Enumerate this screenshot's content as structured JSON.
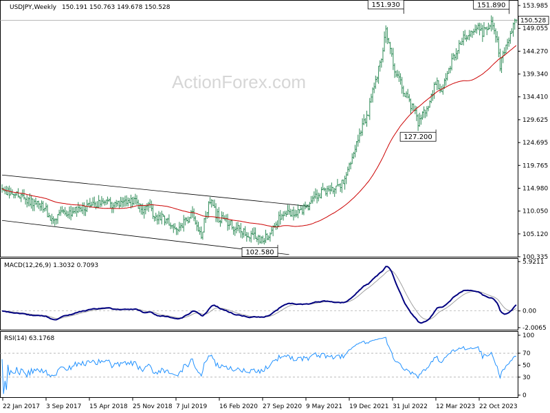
{
  "header": {
    "symbol": "USDJPY,Weekly",
    "ohlc": "150.191 150.763 149.678 150.528",
    "watermark": "ActionForex.com"
  },
  "price_panel": {
    "y_ticks": [
      "153.985",
      "149.055",
      "144.270",
      "139.340",
      "134.410",
      "129.625",
      "124.695",
      "119.765",
      "114.980",
      "110.050",
      "105.120",
      "100.335"
    ],
    "current_price": "150.528",
    "annotations": [
      {
        "label": "151.930",
        "value": 151.93,
        "week": 262
      },
      {
        "label": "151.890",
        "value": 151.89,
        "week": 334
      },
      {
        "label": "127.200",
        "value": 127.2,
        "week": 284
      },
      {
        "label": "102.580",
        "value": 102.58,
        "week": 176
      }
    ]
  },
  "macd_panel": {
    "label": "MACD(12,26,9) 1.3032 0.7093",
    "y_ticks": [
      "5.9211",
      "0.00",
      "-2.0065"
    ]
  },
  "rsi_panel": {
    "label": "RSI(14) 63.1768",
    "y_ticks": [
      "100",
      "70",
      "50",
      "30",
      "0"
    ]
  },
  "x_ticks": [
    "22 Jan 2017",
    "3 Sep 2017",
    "15 Apr 2018",
    "25 Nov 2018",
    "7 Jul 2019",
    "16 Feb 2020",
    "27 Sep 2020",
    "9 May 2021",
    "19 Dec 2021",
    "31 Jul 2022",
    "12 Mar 2023",
    "22 Oct 2023"
  ],
  "colors": {
    "bars": "#2e8b57",
    "ma": "#cc0000",
    "channel": "#000000",
    "macd_line": "#000080",
    "signal_line": "#a0a0a0",
    "rsi": "#1e90ff",
    "grid_level": "#a0a0a0"
  },
  "chart_data": {
    "type": "ohlc",
    "title": "USDJPY,Weekly",
    "ylim": [
      100.335,
      153.985
    ],
    "anchors_close": [
      [
        0,
        114.5
      ],
      [
        10,
        113
      ],
      [
        20,
        112
      ],
      [
        30,
        110
      ],
      [
        33,
        108
      ],
      [
        40,
        109
      ],
      [
        52,
        110
      ],
      [
        60,
        111
      ],
      [
        70,
        112
      ],
      [
        78,
        111
      ],
      [
        90,
        112
      ],
      [
        96,
        110
      ],
      [
        100,
        111
      ],
      [
        105,
        108
      ],
      [
        110,
        108.5
      ],
      [
        120,
        106.5
      ],
      [
        126,
        108
      ],
      [
        130,
        109
      ],
      [
        136,
        104
      ],
      [
        138,
        108
      ],
      [
        142,
        112
      ],
      [
        146,
        109
      ],
      [
        150,
        108
      ],
      [
        156,
        107
      ],
      [
        160,
        106
      ],
      [
        166,
        105
      ],
      [
        172,
        104.5
      ],
      [
        176,
        103.5
      ],
      [
        182,
        104.5
      ],
      [
        190,
        108.5
      ],
      [
        200,
        109.5
      ],
      [
        208,
        110.5
      ],
      [
        214,
        113
      ],
      [
        222,
        114
      ],
      [
        230,
        115
      ],
      [
        236,
        118
      ],
      [
        240,
        123
      ],
      [
        246,
        128
      ],
      [
        250,
        131
      ],
      [
        256,
        139
      ],
      [
        260,
        144
      ],
      [
        262,
        149
      ],
      [
        264,
        145
      ],
      [
        268,
        140
      ],
      [
        272,
        137
      ],
      [
        278,
        133
      ],
      [
        282,
        131
      ],
      [
        284,
        128
      ],
      [
        288,
        131
      ],
      [
        292,
        133
      ],
      [
        296,
        137
      ],
      [
        300,
        136
      ],
      [
        304,
        139
      ],
      [
        308,
        143
      ],
      [
        312,
        145
      ],
      [
        318,
        148
      ],
      [
        324,
        149
      ],
      [
        328,
        148
      ],
      [
        334,
        150
      ],
      [
        338,
        146
      ],
      [
        340,
        141
      ],
      [
        342,
        143
      ],
      [
        346,
        147
      ],
      [
        350,
        150.5
      ]
    ],
    "channel_upper": [
      [
        0,
        117.5
      ],
      [
        210,
        110.8
      ]
    ],
    "channel_lower": [
      [
        0,
        107.8
      ],
      [
        196,
        100.5
      ]
    ],
    "macd": {
      "last": 1.3032,
      "signal_last": 0.7093,
      "ylim": [
        -2.0065,
        5.9211
      ]
    },
    "rsi": {
      "last": 63.1768,
      "levels": [
        70,
        30
      ],
      "ylim": [
        0,
        100
      ]
    }
  }
}
